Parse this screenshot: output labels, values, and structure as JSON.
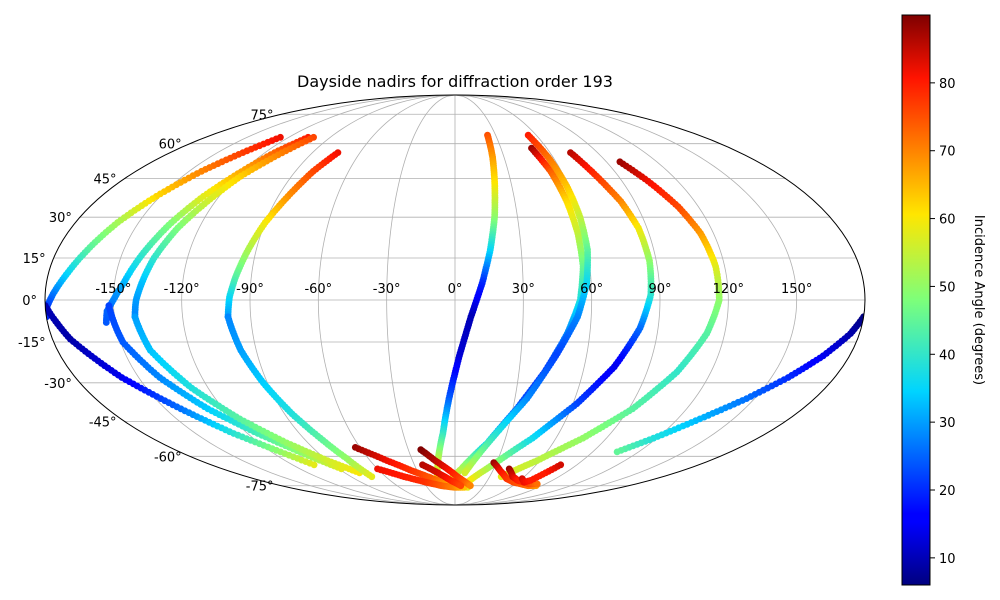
{
  "chart_data": {
    "type": "scatter",
    "projection": "mollweide",
    "title": "Dayside nadirs for diffraction order 193",
    "xlabel": "",
    "ylabel": "",
    "xlim": [
      -180,
      180
    ],
    "ylim": [
      -90,
      90
    ],
    "grid": true,
    "lon_ticks": [
      -150,
      -120,
      -90,
      -60,
      -30,
      0,
      30,
      60,
      90,
      120,
      150
    ],
    "lon_tick_labels": [
      "-150°",
      "-120°",
      "-90°",
      "-60°",
      "-30°",
      "0°",
      "30°",
      "60°",
      "90°",
      "120°",
      "150°"
    ],
    "lat_ticks": [
      -75,
      -60,
      -45,
      -30,
      -15,
      0,
      15,
      30,
      45,
      60,
      75
    ],
    "lat_tick_labels": [
      "-75°",
      "-60°",
      "-45°",
      "-30°",
      "-15°",
      "0°",
      "15°",
      "30°",
      "45°",
      "60°",
      "75°"
    ],
    "colorbar": {
      "label": "Incidence Angle (degrees)",
      "colormap": "jet",
      "range": [
        6,
        90
      ],
      "ticks": [
        10,
        20,
        30,
        40,
        50,
        60,
        70,
        80
      ],
      "tick_labels": [
        "10",
        "20",
        "30",
        "40",
        "50",
        "60",
        "70",
        "80"
      ]
    },
    "series": [
      {
        "x": [
          -126,
          -134,
          -143,
          -152,
          -160,
          -167,
          -172,
          -176,
          -179,
          -180
        ],
        "y": [
          63,
          56,
          48,
          38,
          28,
          17,
          9,
          3,
          -2,
          -6
        ],
        "c": [
          82,
          77,
          70,
          62,
          52,
          43,
          35,
          28,
          22,
          20
        ]
      },
      {
        "x": [
          -180,
          -172,
          -158,
          -142,
          -128,
          -114,
          -104
        ],
        "y": [
          -2,
          -14,
          -28,
          -40,
          -50,
          -58,
          -64
        ],
        "c": [
          10,
          9,
          14,
          26,
          39,
          50,
          58
        ]
      },
      {
        "x": [
          -106,
          -114,
          -121,
          -128,
          -135,
          -141,
          -146,
          -150,
          -153,
          -154
        ],
        "y": [
          63,
          56,
          47,
          38,
          27,
          16,
          6,
          0,
          -4,
          -8
        ],
        "c": [
          80,
          73,
          66,
          58,
          48,
          40,
          32,
          28,
          25,
          24
        ]
      },
      {
        "x": [
          -152,
          -149,
          -140,
          -128,
          -114,
          -100,
          -88
        ],
        "y": [
          -2,
          -15,
          -28,
          -40,
          -50,
          -59,
          -66
        ],
        "c": [
          22,
          24,
          28,
          34,
          42,
          50,
          58
        ]
      },
      {
        "x": [
          -102,
          -110,
          -118,
          -124,
          -130,
          -135,
          -138,
          -140,
          -141
        ],
        "y": [
          63,
          55,
          46,
          36,
          26,
          15,
          6,
          0,
          -6
        ],
        "c": [
          76,
          70,
          63,
          56,
          48,
          40,
          33,
          30,
          28
        ]
      },
      {
        "x": [
          -141,
          -138,
          -128,
          -116,
          -103,
          -90,
          -78
        ],
        "y": [
          -6,
          -18,
          -32,
          -44,
          -54,
          -62,
          -68
        ],
        "c": [
          30,
          33,
          38,
          44,
          50,
          56,
          60
        ]
      },
      {
        "x": [
          -74,
          -80,
          -85,
          -90,
          -94,
          -97,
          -99,
          -100
        ],
        "y": [
          56,
          48,
          38,
          28,
          17,
          8,
          1,
          -6
        ],
        "c": [
          82,
          76,
          69,
          60,
          52,
          44,
          36,
          30
        ]
      },
      {
        "x": [
          -100,
          -97,
          -92,
          -86,
          -80,
          -75,
          -72
        ],
        "y": [
          -6,
          -18,
          -30,
          -42,
          -52,
          -61,
          -70
        ],
        "c": [
          28,
          30,
          34,
          38,
          44,
          50,
          58
        ]
      },
      {
        "x": [
          24,
          23,
          21,
          19,
          16,
          12,
          7,
          2,
          -3,
          -7,
          -12,
          -16
        ],
        "y": [
          64,
          54,
          42,
          30,
          18,
          6,
          -6,
          -20,
          -36,
          -50,
          -62,
          -72
        ],
        "c": [
          75,
          68,
          60,
          50,
          36,
          20,
          10,
          12,
          24,
          40,
          54,
          60
        ]
      },
      {
        "x": [
          50,
          54,
          56,
          57,
          57,
          55,
          50,
          42,
          32,
          20,
          5,
          -8
        ],
        "y": [
          58,
          48,
          36,
          24,
          12,
          0,
          -12,
          -26,
          -40,
          -54,
          -66,
          -74
        ],
        "c": [
          88,
          74,
          62,
          55,
          46,
          38,
          28,
          20,
          24,
          34,
          52,
          62
        ]
      },
      {
        "x": [
          54,
          57,
          59,
          60,
          60,
          58,
          54,
          46,
          36,
          22,
          8
        ],
        "y": [
          64,
          54,
          42,
          30,
          18,
          6,
          -6,
          -20,
          -36,
          -52,
          -68
        ],
        "c": [
          80,
          72,
          64,
          55,
          45,
          36,
          28,
          22,
          28,
          40,
          56
        ]
      },
      {
        "x": [
          73,
          78,
          83,
          86,
          87,
          86,
          82,
          74,
          62,
          46,
          28,
          10
        ],
        "y": [
          56,
          46,
          36,
          26,
          14,
          2,
          -10,
          -24,
          -38,
          -52,
          -64,
          -74
        ],
        "c": [
          86,
          78,
          70,
          60,
          50,
          40,
          26,
          14,
          22,
          36,
          50,
          62
        ]
      },
      {
        "x": [
          98,
          104,
          110,
          114,
          116,
          116,
          112,
          104,
          92,
          76,
          58,
          40
        ],
        "y": [
          52,
          44,
          34,
          24,
          12,
          0,
          -12,
          -26,
          -40,
          -52,
          -62,
          -70
        ],
        "c": [
          88,
          82,
          76,
          68,
          58,
          50,
          44,
          40,
          44,
          50,
          54,
          58
        ]
      },
      {
        "x": [
          180,
          176,
          168,
          158,
          146,
          132,
          118,
          106
        ],
        "y": [
          -6,
          -12,
          -20,
          -28,
          -36,
          -44,
          -52,
          -58
        ],
        "c": [
          6,
          9,
          14,
          20,
          26,
          32,
          38,
          45
        ]
      },
      {
        "x": [
          -63,
          -48,
          -34,
          -20,
          -8,
          4,
          14
        ],
        "y": [
          -56,
          -62,
          -67,
          -71,
          -74,
          -75,
          -76
        ],
        "c": [
          88,
          82,
          78,
          74,
          68,
          62,
          58
        ]
      },
      {
        "x": [
          -60,
          -44,
          -28,
          -14,
          0,
          10
        ],
        "y": [
          -66,
          -70,
          -73,
          -75,
          -76,
          -76
        ],
        "c": [
          82,
          80,
          78,
          74,
          70,
          64
        ]
      },
      {
        "x": [
          -22,
          -14,
          -6,
          2,
          10,
          16
        ],
        "y": [
          -57,
          -62,
          -66,
          -70,
          -73,
          -75
        ],
        "c": [
          90,
          86,
          82,
          78,
          74,
          70
        ]
      },
      {
        "x": [
          -24,
          -14,
          -4,
          6
        ],
        "y": [
          -64,
          -68,
          -72,
          -75
        ],
        "c": [
          86,
          84,
          80,
          76
        ]
      },
      {
        "x": [
          28,
          36,
          46,
          56,
          66,
          76,
          84
        ],
        "y": [
          -63,
          -67,
          -71,
          -73,
          -74,
          -75,
          -75
        ],
        "c": [
          88,
          82,
          78,
          76,
          74,
          72,
          68
        ]
      },
      {
        "x": [
          42,
          50,
          58,
          66,
          74,
          82
        ],
        "y": [
          -66,
          -70,
          -72,
          -73,
          -74,
          -74
        ],
        "c": [
          88,
          84,
          80,
          78,
          76,
          72
        ]
      },
      {
        "x": [
          60,
          66,
          70,
          74,
          78
        ],
        "y": [
          -71,
          -73,
          -72,
          -68,
          -64
        ],
        "c": [
          84,
          82,
          80,
          80,
          84
        ]
      }
    ]
  }
}
